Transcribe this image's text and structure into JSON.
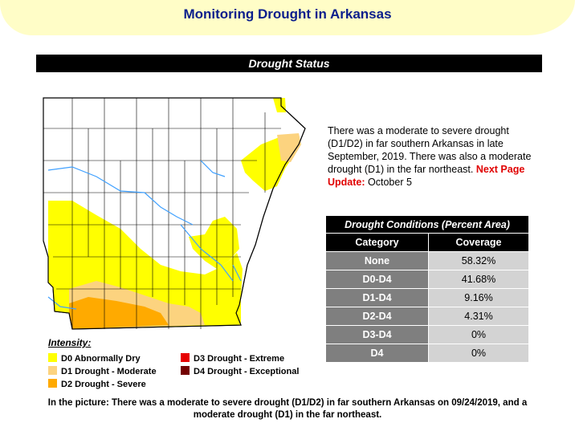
{
  "page": {
    "title": "Monitoring Drought in Arkansas",
    "section_title": "Drought Status"
  },
  "summary": {
    "text": "There was a moderate to severe drought (D1/D2) in far southern Arkansas in late September, 2019. There was also a moderate drought (D1) in the far northeast.",
    "update_label": "Next Page Update:",
    "update_value": "October 5"
  },
  "conditions": {
    "title": "Drought Conditions (Percent Area)",
    "headers": [
      "Category",
      "Coverage"
    ],
    "rows": [
      {
        "category": "None",
        "coverage": "58.32%"
      },
      {
        "category": "D0-D4",
        "coverage": "41.68%"
      },
      {
        "category": "D1-D4",
        "coverage": "9.16%"
      },
      {
        "category": "D2-D4",
        "coverage": "4.31%"
      },
      {
        "category": "D3-D4",
        "coverage": "0%"
      },
      {
        "category": "D4",
        "coverage": "0%"
      }
    ]
  },
  "legend": {
    "title": "Intensity:",
    "items": [
      {
        "label": "D0 Abnormally Dry",
        "color": "#ffff00"
      },
      {
        "label": "D1 Drought - Moderate",
        "color": "#fcd37f"
      },
      {
        "label": "D2 Drought - Severe",
        "color": "#ffaa00"
      },
      {
        "label": "D3 Drought - Extreme",
        "color": "#e60000"
      },
      {
        "label": "D4 Drought - Exceptional",
        "color": "#730000"
      }
    ]
  },
  "caption": {
    "line1": "In the picture: There was a moderate to severe drought (D1/D2) in far southern Arkansas on 09/24/2019, and a",
    "line2": "moderate drought (D1) in the far northeast."
  },
  "colors": {
    "title": "#0a1e8c",
    "header_bg": "#fffdc7",
    "update_label": "#e00000",
    "river": "#3fa0ff"
  }
}
